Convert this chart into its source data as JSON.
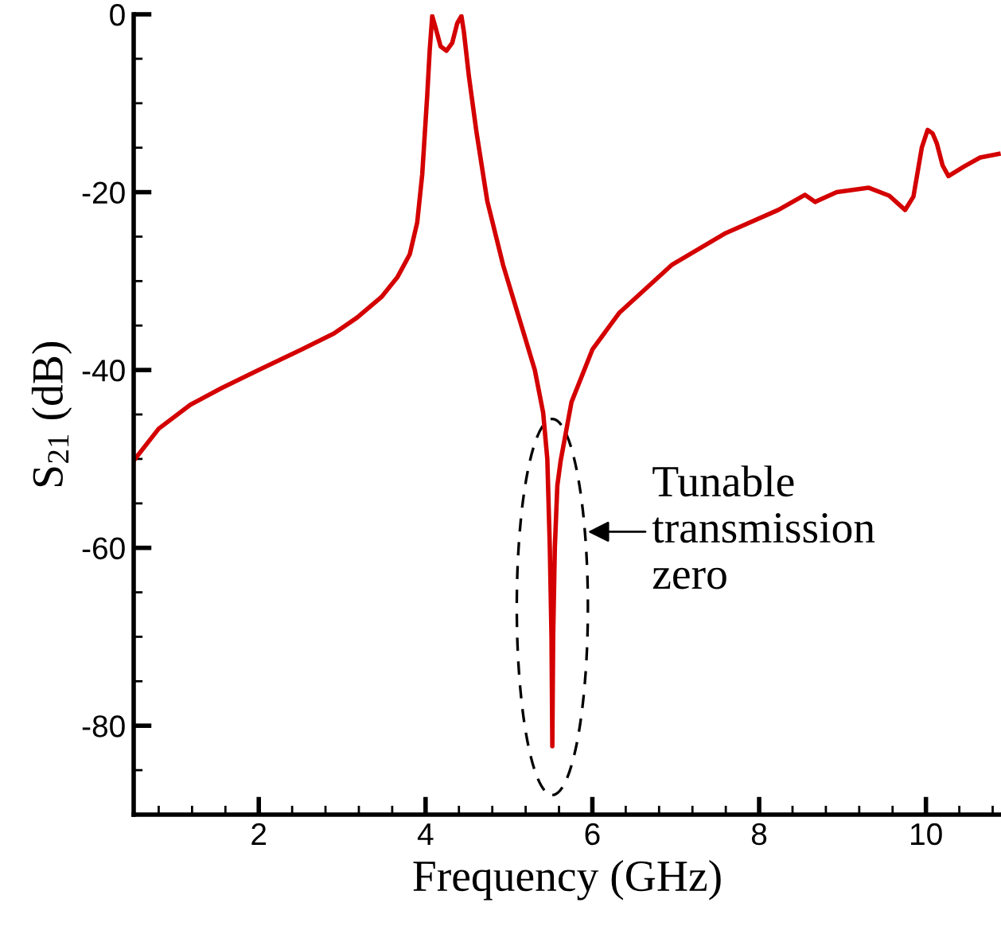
{
  "chart_data": {
    "type": "line",
    "xlabel": "Frequency (GHz)",
    "ylabel": "S$_{21}$ (dB)",
    "xlim": [
      0.5,
      10.9
    ],
    "xticks": [
      2,
      4,
      6,
      8,
      10
    ],
    "ylim": [
      -90,
      0
    ],
    "yticks": [
      -80,
      -60,
      -40,
      -20,
      0
    ],
    "grid": false,
    "legend": false,
    "marker": "none",
    "line_style": "solid",
    "annotations": [
      "Tunable\ntransmission\nzero"
    ],
    "series": [
      {
        "color": "#d40000",
        "x": [
          0.5,
          0.8,
          1.18,
          1.56,
          2.0,
          2.51,
          2.9,
          3.18,
          3.47,
          3.66,
          3.81,
          3.9,
          3.96,
          4.02,
          4.05,
          4.08,
          4.12,
          4.18,
          4.25,
          4.32,
          4.38,
          4.43,
          4.46,
          4.52,
          4.61,
          4.74,
          4.93,
          5.12,
          5.31,
          5.41,
          5.46,
          5.49,
          5.51,
          5.52,
          5.53,
          5.55,
          5.58,
          5.62,
          5.75,
          6.0,
          6.32,
          6.95,
          7.6,
          8.23,
          8.55,
          8.67,
          8.93,
          9.31,
          9.56,
          9.75,
          9.85,
          9.95,
          10.02,
          10.08,
          10.13,
          10.2,
          10.27,
          10.46,
          10.65,
          10.87
        ],
        "values": [
          -50.2,
          -46.6,
          -43.9,
          -42,
          -40,
          -37.7,
          -35.9,
          -34.1,
          -31.8,
          -29.6,
          -27,
          -23.4,
          -18,
          -9.1,
          -4,
          -0.2,
          -1.5,
          -3.6,
          -4.1,
          -3.2,
          -1,
          -0.2,
          -2,
          -7,
          -13.2,
          -21,
          -28.2,
          -34.1,
          -40,
          -44.8,
          -50,
          -60,
          -70,
          -82.3,
          -70,
          -60,
          -53,
          -50.2,
          -43.6,
          -37.7,
          -33.6,
          -28.2,
          -24.6,
          -22,
          -20.3,
          -21.1,
          -20,
          -19.5,
          -20.4,
          -22,
          -20.5,
          -15,
          -13,
          -13.4,
          -14.5,
          -17,
          -18.2,
          -17.1,
          -16.1,
          -15.7
        ]
      }
    ]
  }
}
